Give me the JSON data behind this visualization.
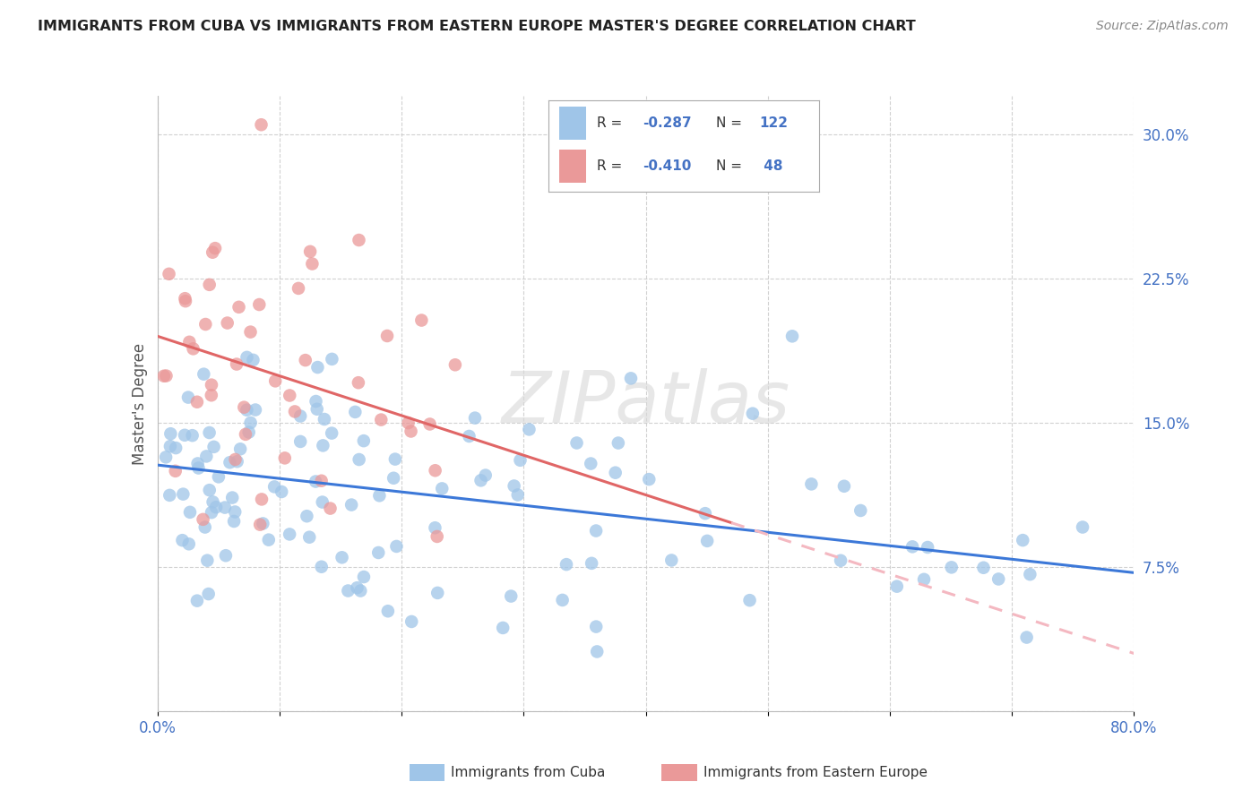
{
  "title": "IMMIGRANTS FROM CUBA VS IMMIGRANTS FROM EASTERN EUROPE MASTER'S DEGREE CORRELATION CHART",
  "source": "Source: ZipAtlas.com",
  "ylabel": "Master's Degree",
  "color_cuba": "#9fc5e8",
  "color_eastern": "#ea9999",
  "color_line_cuba": "#3c78d8",
  "color_line_eastern": "#e06666",
  "color_line_eastern_dashed": "#f4b8c1",
  "watermark_color": "#d9d9d9",
  "tick_color": "#4472c4",
  "grid_color": "#cccccc",
  "xlim": [
    0.0,
    0.8
  ],
  "ylim": [
    0.0,
    0.32
  ],
  "y_line_cuba_start": 0.128,
  "y_line_cuba_end": 0.072,
  "y_line_east_start": 0.195,
  "y_line_east_solid_end_x": 0.47,
  "y_line_east_solid_end_y": 0.098,
  "y_line_east_dash_end_x": 0.8,
  "y_line_east_dash_end_y": 0.03
}
